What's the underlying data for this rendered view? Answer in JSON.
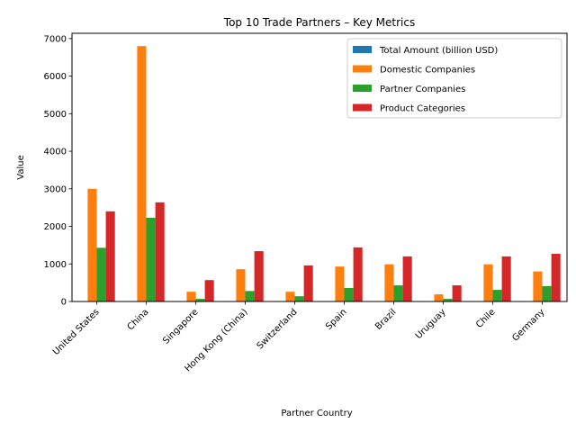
{
  "chart_data": {
    "type": "bar",
    "title": "Top 10 Trade Partners – Key Metrics",
    "xlabel": "Partner Country",
    "ylabel": "Value",
    "ylim": [
      0,
      7140
    ],
    "yticks": [
      0,
      1000,
      2000,
      3000,
      4000,
      5000,
      6000,
      7000
    ],
    "legend_position": "top-right",
    "grid": false,
    "categories": [
      "United States",
      "China",
      "Singapore",
      "Hong Kong (China)",
      "Switzerland",
      "Spain",
      "Brazil",
      "Uruguay",
      "Chile",
      "Germany"
    ],
    "series": [
      {
        "name": "Total Amount (billion USD)",
        "color": "#1f77b4",
        "values": [
          0.9,
          1.2,
          0.2,
          0.3,
          0.2,
          0.2,
          0.2,
          0.1,
          0.2,
          0.2
        ]
      },
      {
        "name": "Domestic Companies",
        "color": "#ff7f0e",
        "values": [
          3000,
          6800,
          260,
          860,
          260,
          930,
          990,
          190,
          990,
          800
        ]
      },
      {
        "name": "Partner Companies",
        "color": "#2ca02c",
        "values": [
          1430,
          2230,
          70,
          280,
          140,
          360,
          430,
          70,
          310,
          410
        ]
      },
      {
        "name": "Product Categories",
        "color": "#d62728",
        "values": [
          2400,
          2640,
          570,
          1340,
          960,
          1440,
          1200,
          430,
          1200,
          1270
        ]
      }
    ]
  }
}
